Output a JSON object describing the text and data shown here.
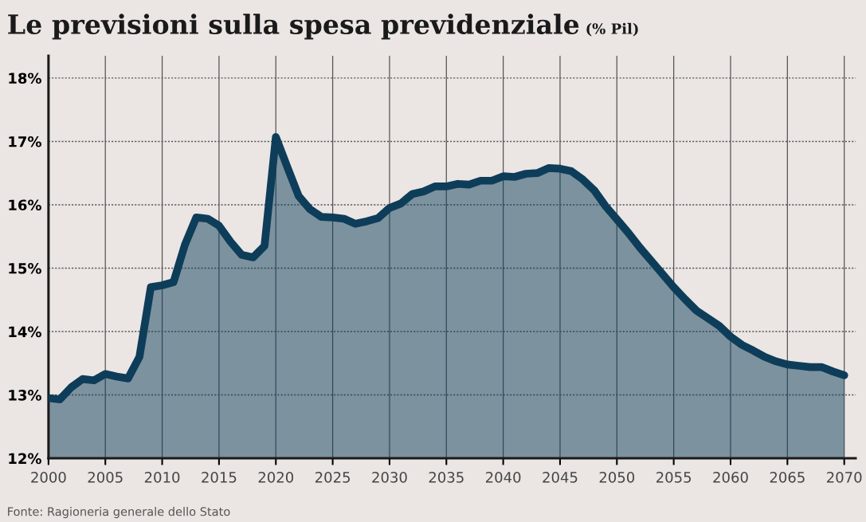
{
  "chart_data": {
    "type": "area",
    "title": "Le previsioni sulla spesa previdenziale",
    "subtitle": "(% Pil)",
    "annotations": [
      "Fonte: Ragioneria generale dello Stato"
    ],
    "x": [
      2000,
      2001,
      2002,
      2003,
      2004,
      2005,
      2006,
      2007,
      2008,
      2009,
      2010,
      2011,
      2012,
      2013,
      2014,
      2015,
      2016,
      2017,
      2018,
      2019,
      2020,
      2021,
      2022,
      2023,
      2024,
      2025,
      2026,
      2027,
      2028,
      2029,
      2030,
      2031,
      2032,
      2033,
      2034,
      2035,
      2036,
      2037,
      2038,
      2039,
      2040,
      2041,
      2042,
      2043,
      2044,
      2045,
      2046,
      2047,
      2048,
      2049,
      2050,
      2051,
      2052,
      2053,
      2054,
      2055,
      2056,
      2057,
      2058,
      2059,
      2060,
      2061,
      2062,
      2063,
      2064,
      2065,
      2066,
      2067,
      2068,
      2069,
      2070
    ],
    "series": [
      {
        "color": "#0e3d5a",
        "values": [
          12.95,
          12.93,
          13.12,
          13.25,
          13.23,
          13.33,
          13.29,
          13.26,
          13.6,
          14.7,
          14.73,
          14.78,
          15.37,
          15.8,
          15.78,
          15.67,
          15.42,
          15.21,
          15.17,
          15.35,
          17.07,
          16.6,
          16.14,
          15.93,
          15.81,
          15.8,
          15.78,
          15.7,
          15.74,
          15.79,
          15.95,
          16.02,
          16.17,
          16.21,
          16.29,
          16.29,
          16.33,
          16.32,
          16.38,
          16.38,
          16.45,
          16.44,
          16.49,
          16.5,
          16.58,
          16.57,
          16.53,
          16.4,
          16.23,
          15.98,
          15.77,
          15.56,
          15.33,
          15.12,
          14.91,
          14.7,
          14.51,
          14.33,
          14.21,
          14.09,
          13.92,
          13.79,
          13.7,
          13.6,
          13.53,
          13.48,
          13.46,
          13.44,
          13.44,
          13.37,
          13.31
        ]
      }
    ],
    "xlim": [
      2000,
      2071
    ],
    "xticks": [
      2000,
      2005,
      2010,
      2015,
      2020,
      2025,
      2030,
      2035,
      2040,
      2045,
      2050,
      2055,
      2060,
      2065,
      2070
    ],
    "ylim": [
      12,
      18.35
    ],
    "yticks": [
      {
        "value": 12,
        "label": "12%"
      },
      {
        "value": 13,
        "label": "13%"
      },
      {
        "value": 14,
        "label": "14%"
      },
      {
        "value": 15,
        "label": "15%"
      },
      {
        "value": 16,
        "label": "16%"
      },
      {
        "value": 17,
        "label": "17%"
      },
      {
        "value": 18,
        "label": "18%"
      }
    ],
    "grid": true,
    "line_style": "solid"
  }
}
